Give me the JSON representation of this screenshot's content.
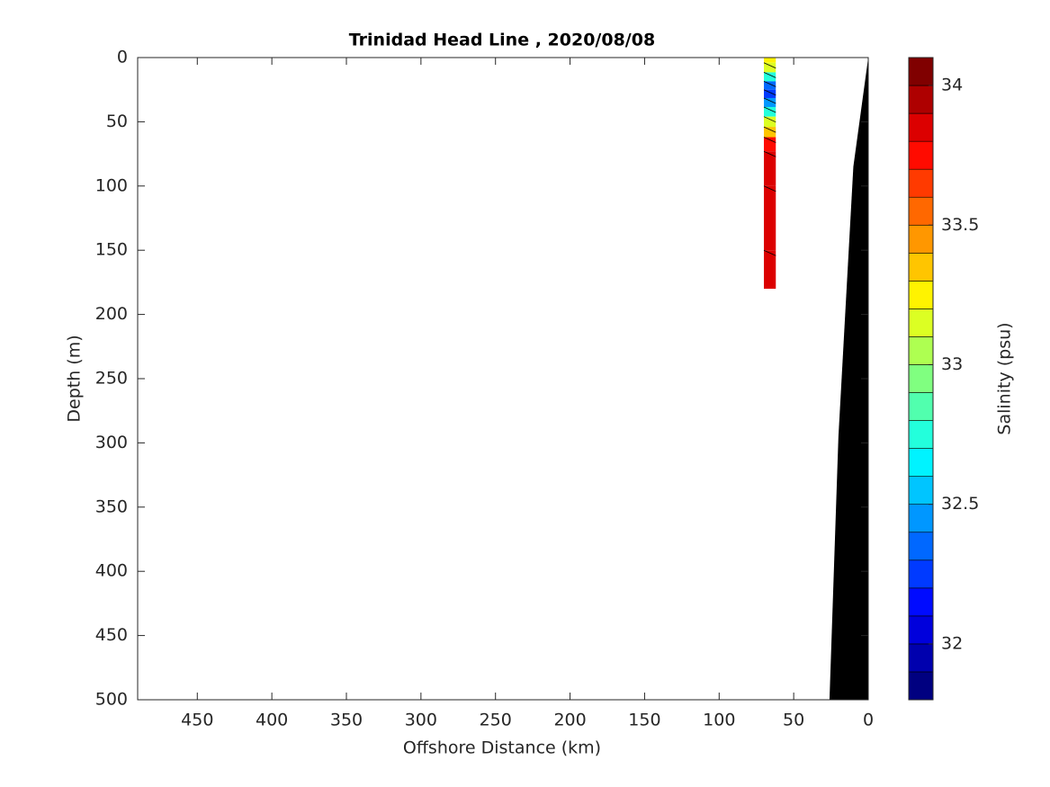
{
  "chart_data": {
    "type": "section",
    "title": "Trinidad Head Line , 2020/08/08",
    "xlabel": "Offshore Distance (km)",
    "ylabel": "Depth (m)",
    "xlim": [
      0,
      490
    ],
    "x_reversed": true,
    "ylim": [
      0,
      500
    ],
    "y_reversed": true,
    "xticks": [
      0,
      50,
      100,
      150,
      200,
      250,
      300,
      350,
      400,
      450
    ],
    "yticks": [
      0,
      50,
      100,
      150,
      200,
      250,
      300,
      350,
      400,
      450,
      500
    ],
    "profile": {
      "x_range": [
        62,
        70
      ],
      "depth": [
        0,
        8,
        15,
        22,
        28,
        35,
        42,
        50,
        58,
        66,
        80,
        120,
        180
      ],
      "salinity": [
        33.3,
        33.1,
        32.8,
        32.4,
        32.3,
        32.5,
        32.8,
        33.1,
        33.4,
        33.7,
        33.85,
        33.9,
        33.9
      ]
    },
    "bathymetry": {
      "distance": [
        0,
        10,
        20,
        26
      ],
      "depth": [
        0,
        85,
        295,
        500
      ],
      "color": "#000000"
    },
    "colorbar": {
      "label": "Salinity (psu)",
      "clim": [
        31.8,
        34.1
      ],
      "ticks": [
        32,
        32.5,
        33,
        33.5,
        34
      ],
      "colormap": [
        "#000080",
        "#0000ae",
        "#0000dc",
        "#000bff",
        "#003aff",
        "#0068ff",
        "#0097ff",
        "#00c5ff",
        "#00f3ff",
        "#23ffdc",
        "#51ffae",
        "#80ff80",
        "#aeff51",
        "#dcff23",
        "#fff300",
        "#ffc500",
        "#ff9700",
        "#ff6800",
        "#ff3a00",
        "#ff0b00",
        "#dc0000",
        "#ae0000",
        "#800000"
      ]
    }
  }
}
